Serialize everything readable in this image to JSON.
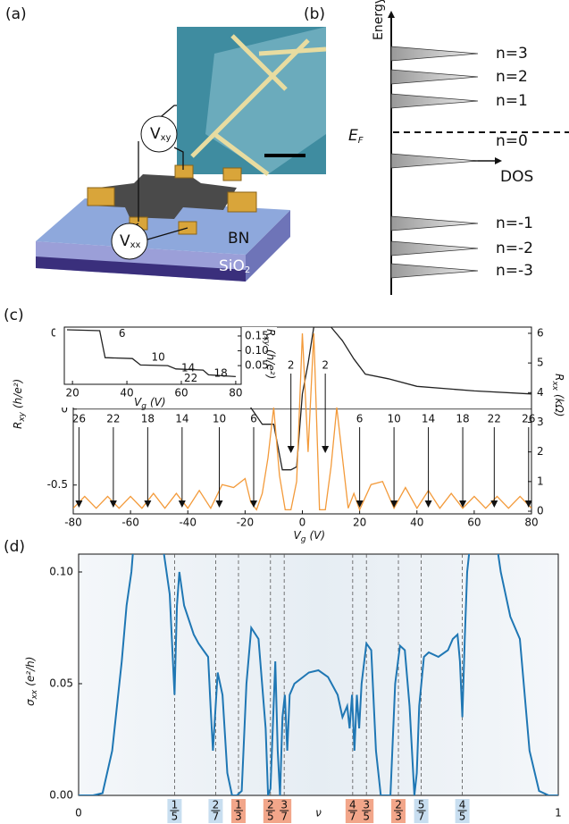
{
  "panels": {
    "a": {
      "label": "(a)",
      "vxy": {
        "main": "V",
        "sub": "xy"
      },
      "vxx": {
        "main": "V",
        "sub": "xx"
      },
      "bn": "BN",
      "sio2": {
        "main": "SiO",
        "sub": "2"
      }
    },
    "b": {
      "label": "(b)",
      "y_label": "Energy",
      "x_label": "DOS",
      "fermi": {
        "main": "E",
        "sub": "F"
      },
      "levels": [
        "n=3",
        "n=2",
        "n=1",
        "n=0",
        "n=-1",
        "n=-2",
        "n=-3"
      ]
    }
  },
  "chart_data": [
    {
      "type": "line",
      "panel_label": "(c)",
      "x_label": {
        "main": "V",
        "sub": "g",
        "unit": "(V)"
      },
      "y_label": {
        "main": "R",
        "sub": "xy",
        "unit": "(h/e²)"
      },
      "y2_label": {
        "main": "R",
        "sub": "xx",
        "unit": "(kΩ)"
      },
      "xlim": [
        -80,
        80
      ],
      "xticks": [
        -80,
        -60,
        -40,
        -20,
        0,
        20,
        40,
        60,
        80
      ],
      "ylim": [
        -0.69,
        0.54
      ],
      "yticks": [
        -0.5,
        0,
        0.5
      ],
      "y2lim": [
        -0.09,
        6.21
      ],
      "y2ticks": [
        0,
        1,
        2,
        3,
        4,
        5,
        6
      ],
      "series": [
        {
          "color": "#222222",
          "x": [
            -80,
            -60,
            -40,
            -30,
            -22,
            -18,
            -14,
            -10,
            -7,
            -4,
            -2,
            0,
            2,
            4,
            6,
            10,
            14,
            18,
            22,
            30,
            40,
            60,
            80
          ],
          "values": [
            0.17,
            0.16,
            0.15,
            0.13,
            0.12,
            0.01,
            -0.1,
            -0.1,
            -0.4,
            -0.4,
            -0.38,
            0.1,
            0.3,
            0.54,
            0.54,
            0.54,
            0.45,
            0.33,
            0.23,
            0.2,
            0.15,
            0.12,
            0.1
          ]
        },
        {
          "color": "#f39a3a",
          "axis": "y2",
          "x": [
            -80,
            -76,
            -72,
            -68,
            -64,
            -60,
            -56,
            -52,
            -48,
            -44,
            -40,
            -36,
            -32,
            -28,
            -24,
            -20,
            -18,
            -16,
            -14,
            -12,
            -10,
            -8,
            -6,
            -4,
            -2,
            0,
            2,
            4,
            6,
            8,
            10,
            12,
            14,
            16,
            18,
            20,
            24,
            28,
            32,
            36,
            40,
            44,
            48,
            52,
            56,
            60,
            64,
            68,
            72,
            76,
            80
          ],
          "values": [
            0.1,
            0.5,
            0.1,
            0.5,
            0.1,
            0.5,
            0.1,
            0.6,
            0.1,
            0.6,
            0.1,
            0.7,
            0.1,
            0.9,
            0.8,
            1.1,
            0.3,
            0.05,
            0.6,
            1.8,
            3.5,
            1.2,
            0.05,
            0.05,
            1.0,
            6.0,
            2.0,
            6.0,
            0.05,
            0.05,
            1.5,
            3.5,
            1.8,
            0.1,
            0.6,
            0.05,
            0.9,
            1.0,
            0.1,
            0.8,
            0.1,
            0.7,
            0.1,
            0.6,
            0.1,
            0.5,
            0.1,
            0.5,
            0.1,
            0.5,
            0.1
          ]
        }
      ],
      "annotations": [
        {
          "label": "26",
          "x": -78
        },
        {
          "label": "22",
          "x": -66
        },
        {
          "label": "18",
          "x": -54
        },
        {
          "label": "14",
          "x": -42
        },
        {
          "label": "10",
          "x": -29
        },
        {
          "label": "6",
          "x": -17
        },
        {
          "label": "2",
          "x": -4
        },
        {
          "label": "2",
          "x": 8
        },
        {
          "label": "6",
          "x": 20
        },
        {
          "label": "10",
          "x": 32
        },
        {
          "label": "14",
          "x": 44
        },
        {
          "label": "18",
          "x": 56
        },
        {
          "label": "22",
          "x": 67
        },
        {
          "label": "26",
          "x": 79
        }
      ]
    },
    {
      "type": "line",
      "x_label": {
        "main": "V",
        "sub": "g",
        "unit": "(V)"
      },
      "y_label": {
        "main": "R",
        "sub": "xy",
        "unit": "(h/e²)"
      },
      "xlim": [
        17,
        82
      ],
      "xticks": [
        20,
        40,
        60,
        80
      ],
      "ylim": [
        -0.013,
        0.18
      ],
      "yticks": [
        0.05,
        {
          "value": 0.1,
          "label": "0.10"
        },
        0.15
      ],
      "series": [
        {
          "color": "#222222",
          "x": [
            18,
            30,
            32,
            42,
            45,
            55,
            58,
            68,
            70,
            80
          ],
          "values": [
            0.171,
            0.168,
            0.077,
            0.074,
            0.052,
            0.05,
            0.039,
            0.035,
            0.019,
            0.013
          ]
        }
      ],
      "annotations": [
        {
          "label": "6",
          "x": 37,
          "y": 0.158
        },
        {
          "label": "10",
          "x": 49,
          "y": 0.077
        },
        {
          "label": "14",
          "x": 60,
          "y": 0.042
        },
        {
          "label": "18",
          "x": 72,
          "y": 0.023
        },
        {
          "label": "22",
          "x": 61,
          "y": 0.006
        }
      ]
    },
    {
      "type": "line",
      "panel_label": "(d)",
      "x_label": "ν",
      "y_label": {
        "main": "σ",
        "sub": "xx",
        "unit": "(e²/h)"
      },
      "xlim": [
        0,
        1
      ],
      "xticks": [
        0,
        1
      ],
      "ylim": [
        0,
        0.108
      ],
      "yticks": [
        {
          "value": 0,
          "label": "0.00"
        },
        0.05,
        {
          "value": 0.1,
          "label": "0.10"
        }
      ],
      "series": [
        {
          "color": "#1f77b4",
          "x": [
            0,
            0.03,
            0.05,
            0.07,
            0.09,
            0.1,
            0.11,
            0.125,
            0.17,
            0.19,
            0.2,
            0.205,
            0.21,
            0.22,
            0.24,
            0.25,
            0.26,
            0.27,
            0.275,
            0.28,
            0.29,
            0.3,
            0.31,
            0.32,
            0.33,
            0.34,
            0.35,
            0.36,
            0.375,
            0.39,
            0.395,
            0.4,
            0.41,
            0.415,
            0.42,
            0.425,
            0.43,
            0.435,
            0.44,
            0.45,
            0.48,
            0.5,
            0.52,
            0.54,
            0.55,
            0.56,
            0.565,
            0.57,
            0.575,
            0.58,
            0.585,
            0.59,
            0.6,
            0.61,
            0.62,
            0.63,
            0.64,
            0.65,
            0.66,
            0.67,
            0.68,
            0.69,
            0.7,
            0.705,
            0.71,
            0.72,
            0.73,
            0.75,
            0.77,
            0.78,
            0.79,
            0.795,
            0.8,
            0.805,
            0.81,
            0.82,
            0.86,
            0.88,
            0.9,
            0.92,
            0.94,
            0.96,
            0.98,
            1
          ],
          "values": [
            0,
            0,
            0.001,
            0.02,
            0.06,
            0.085,
            0.1,
            0.14,
            0.12,
            0.09,
            0.045,
            0.085,
            0.1,
            0.085,
            0.072,
            0.068,
            0.065,
            0.062,
            0.04,
            0.02,
            0.055,
            0.045,
            0.01,
            0,
            0,
            0.002,
            0.05,
            0.075,
            0.07,
            0.03,
            0,
            0.003,
            0.06,
            0.02,
            0,
            0.035,
            0.045,
            0.02,
            0.045,
            0.05,
            0.055,
            0.056,
            0.053,
            0.045,
            0.035,
            0.04,
            0.03,
            0.045,
            0.02,
            0.045,
            0.03,
            0.05,
            0.068,
            0.065,
            0.02,
            0,
            0,
            0,
            0.05,
            0.067,
            0.065,
            0.04,
            0,
            0.01,
            0.04,
            0.062,
            0.064,
            0.062,
            0.065,
            0.07,
            0.072,
            0.06,
            0.035,
            0.07,
            0.1,
            0.12,
            0.13,
            0.1,
            0.08,
            0.07,
            0.02,
            0.002,
            0,
            0
          ]
        }
      ],
      "fractions": [
        {
          "num": "1",
          "den": "5",
          "value": 0.2,
          "color": "#c8def0"
        },
        {
          "num": "2",
          "den": "7",
          "value": 0.2857,
          "color": "#c8def0"
        },
        {
          "num": "1",
          "den": "3",
          "value": 0.3333,
          "color": "#f2a68a"
        },
        {
          "num": "2",
          "den": "5",
          "value": 0.4,
          "color": "#f2a68a"
        },
        {
          "num": "3",
          "den": "7",
          "value": 0.4286,
          "color": "#f2a68a"
        },
        {
          "num": "4",
          "den": "7",
          "value": 0.5714,
          "color": "#f2a68a"
        },
        {
          "num": "3",
          "den": "5",
          "value": 0.6,
          "color": "#f2a68a"
        },
        {
          "num": "2",
          "den": "3",
          "value": 0.6667,
          "color": "#f2a68a"
        },
        {
          "num": "5",
          "den": "7",
          "value": 0.7143,
          "color": "#c8def0"
        },
        {
          "num": "4",
          "den": "5",
          "value": 0.8,
          "color": "#c8def0"
        }
      ]
    }
  ]
}
